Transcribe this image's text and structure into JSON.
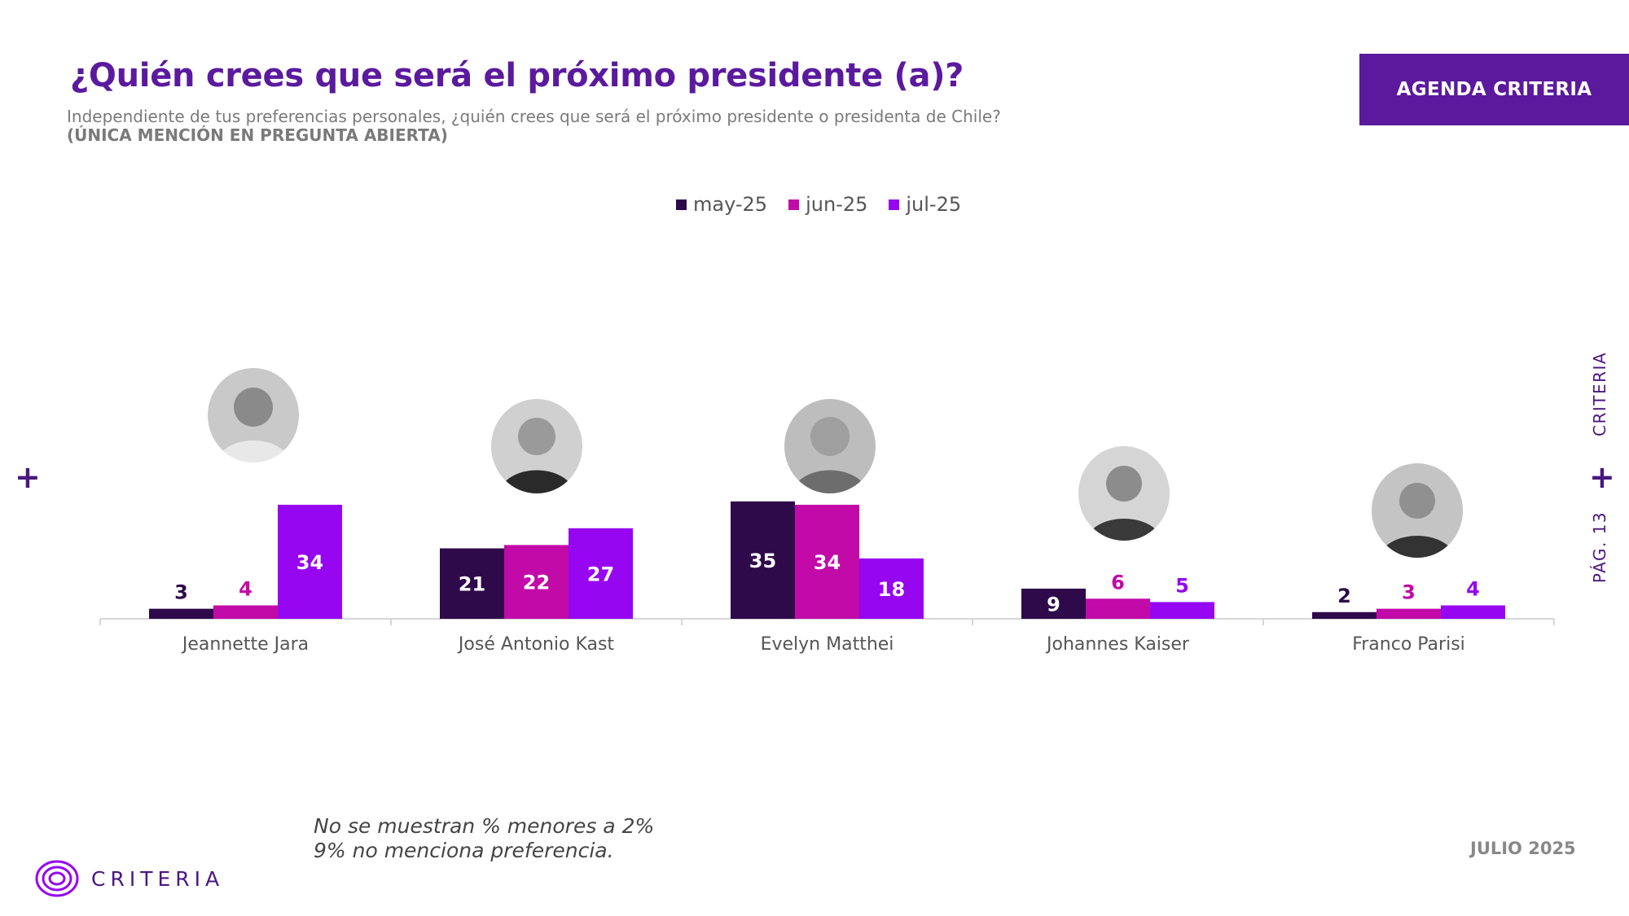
{
  "header": {
    "title": "¿Quién crees que será el próximo presidente (a)?",
    "subtitle": "Independiente de tus preferencias personales, ¿quién crees que será el próximo presidente o presidenta de Chile?",
    "note": "(ÚNICA MENCIÓN EN PREGUNTA ABIERTA)",
    "badge": "AGENDA CRITERIA"
  },
  "side": {
    "brand": "CRITERIA",
    "page": "PÁG. 13"
  },
  "footer": {
    "note1": "No se muestran % menores a 2%",
    "note2": "9% no menciona preferencia.",
    "date": "JULIO 2025",
    "logo_text": "CRITERIA"
  },
  "icons": {
    "photo": "candidate-photo-icon",
    "plus": "plus-icon",
    "logo": "criteria-logo-icon"
  },
  "chart_data": {
    "type": "bar",
    "categories": [
      "Jeannette Jara",
      "José Antonio Kast",
      "Evelyn Matthei",
      "Johannes Kaiser",
      "Franco Parisi"
    ],
    "series": [
      {
        "name": "may-25",
        "color": "#2e0a4a",
        "values": [
          3,
          21,
          35,
          9,
          2
        ]
      },
      {
        "name": "jun-25",
        "color": "#c20aa8",
        "values": [
          4,
          22,
          34,
          6,
          3
        ]
      },
      {
        "name": "jul-25",
        "color": "#9606f0",
        "values": [
          34,
          27,
          18,
          5,
          4
        ]
      }
    ],
    "label_inside_color": "#ffffff",
    "grid": false,
    "legend": "top-center"
  }
}
